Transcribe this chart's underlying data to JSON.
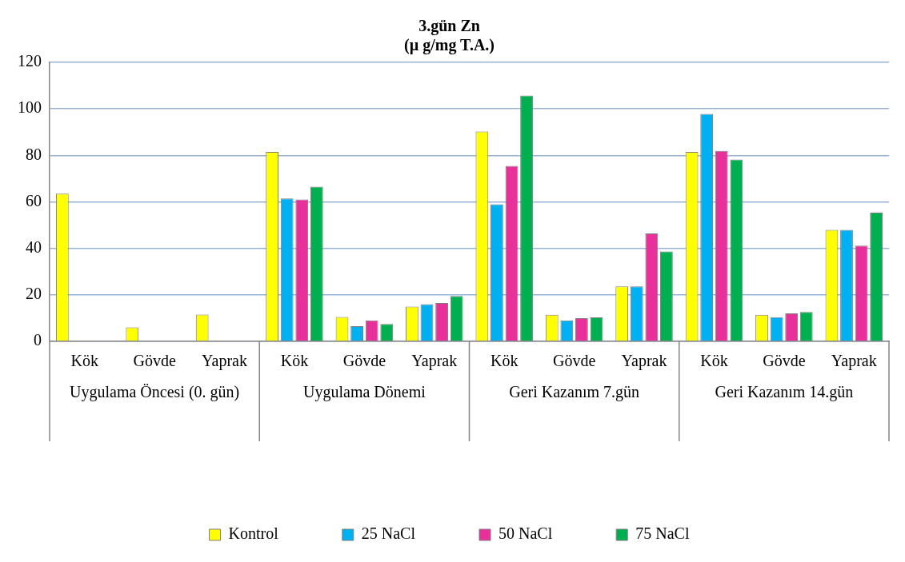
{
  "chart_data": {
    "type": "bar",
    "title": "3.gün Zn",
    "subtitle": "(µ g/mg T.A.)",
    "categories": [
      "Kök",
      "Gövde",
      "Yaprak",
      "Kök",
      "Gövde",
      "Yaprak",
      "Kök",
      "Gövde",
      "Yaprak",
      "Kök",
      "Gövde",
      "Yaprak"
    ],
    "annotations": [
      "Uygulama Öncesi (0. gün)",
      "Uygulama Dönemi",
      "Geri Kazanım 7.gün",
      "Geri Kazanım 14.gün"
    ],
    "series": [
      {
        "name": "Kontrol",
        "color": "#ffff00",
        "values": [
          63.5,
          6,
          11.5,
          81.5,
          10.5,
          15,
          90.3,
          11.4,
          23.6,
          81.5,
          11.4,
          48
        ]
      },
      {
        "name": "25 NaCl",
        "color": "#00b0f0",
        "values": [
          null,
          null,
          null,
          61.5,
          6.5,
          16,
          59,
          9,
          23.6,
          97.8,
          10.4,
          48
        ]
      },
      {
        "name": "50 NaCl",
        "color": "#e8309a",
        "values": [
          null,
          null,
          null,
          61,
          9,
          16.5,
          75.5,
          10,
          46.4,
          81.9,
          12,
          41.2
        ]
      },
      {
        "name": "75 NaCl",
        "color": "#00b050",
        "values": [
          null,
          null,
          null,
          66.5,
          7.5,
          19.5,
          105.7,
          10.3,
          38.7,
          78.2,
          12.6,
          55.4
        ]
      }
    ],
    "ylim": [
      0,
      120
    ],
    "yticks": [
      0,
      20,
      40,
      60,
      80,
      100,
      120
    ],
    "grid": "y",
    "legend": "bottom"
  }
}
